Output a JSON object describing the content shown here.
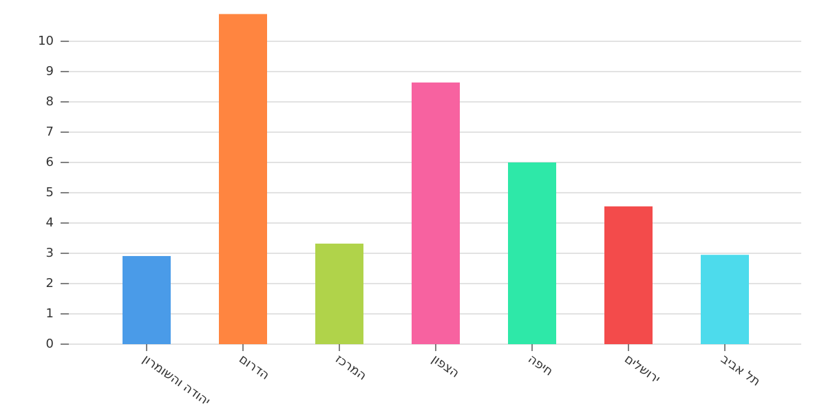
{
  "chart_data": {
    "type": "bar",
    "categories": [
      "יהודה והשומרון",
      "הדרום",
      "המרכז",
      "הצפון",
      "חיפה",
      "ירושלים",
      "תל אביב"
    ],
    "values": [
      2.91,
      10.9,
      3.32,
      8.64,
      6.0,
      4.55,
      2.95
    ],
    "colors": [
      "#4a9be8",
      "#ff8540",
      "#b0d34a",
      "#f762a0",
      "#2ee8a8",
      "#f34b4b",
      "#4ddbec"
    ],
    "ylim": [
      0,
      11
    ],
    "yticks": [
      0,
      1,
      2,
      3,
      4,
      5,
      6,
      7,
      8,
      9,
      10
    ],
    "grid": true
  }
}
